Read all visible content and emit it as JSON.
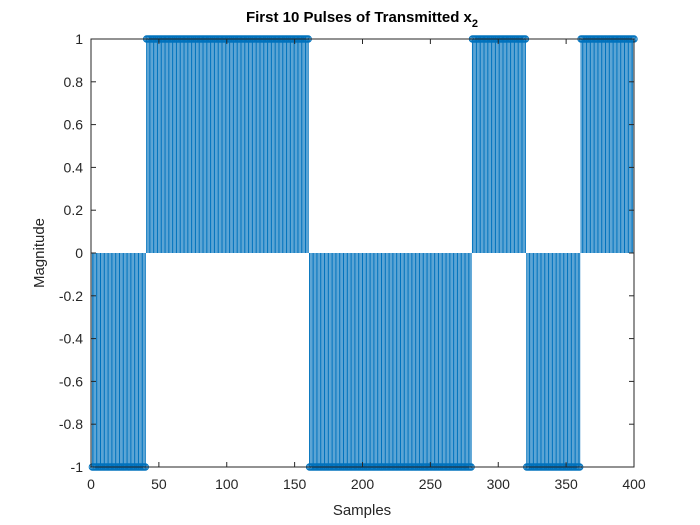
{
  "chart_data": {
    "type": "stem",
    "title": "First 10 Pulses of Transmitted x",
    "title_subscript": "2",
    "xlabel": "Samples",
    "ylabel": "Magnitude",
    "xlim": [
      0,
      400
    ],
    "ylim": [
      -1,
      1
    ],
    "xticks": [
      "0",
      "50",
      "100",
      "150",
      "200",
      "250",
      "300",
      "350",
      "400"
    ],
    "yticks": [
      "-1",
      "-0.8",
      "-0.6",
      "-0.4",
      "-0.2",
      "0",
      "0.2",
      "0.4",
      "0.6",
      "0.8",
      "1"
    ],
    "samples_per_pulse": 40,
    "pulse_amplitudes": [
      -1,
      1,
      1,
      1,
      -1,
      -1,
      -1,
      1,
      -1,
      1
    ],
    "sample_range": [
      1,
      400
    ],
    "stem_color": "#0072BD",
    "box": true,
    "grid": false
  }
}
